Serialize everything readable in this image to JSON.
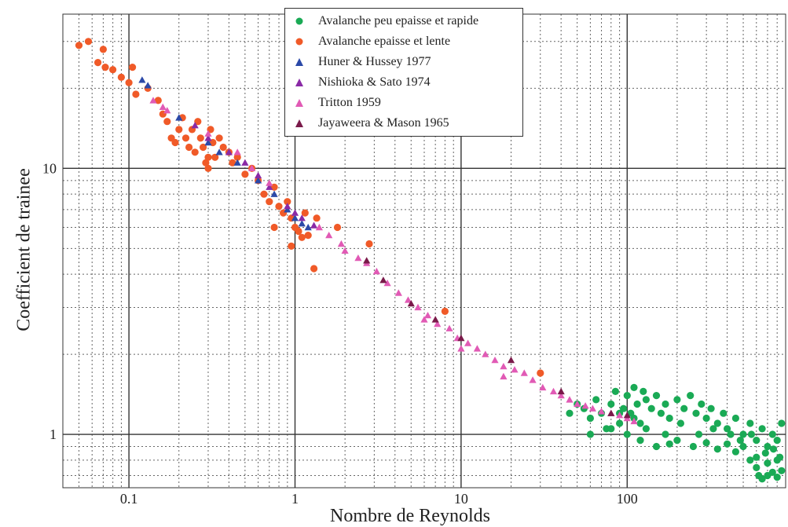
{
  "chart_data": {
    "type": "scatter",
    "xlabel": "Nombre de Reynolds",
    "ylabel": "Coefficient de trainee",
    "xscale": "log",
    "yscale": "log",
    "xlim": [
      0.04,
      900
    ],
    "ylim": [
      0.63,
      38
    ],
    "x_ticks": [
      0.1,
      1,
      10,
      100
    ],
    "x_tick_labels": [
      "0.1",
      "1",
      "10",
      "100"
    ],
    "y_ticks": [
      1,
      10
    ],
    "y_tick_labels": [
      "1",
      "10"
    ],
    "grid": true,
    "legend_position": "top-center",
    "series": [
      {
        "name": "Avalanche peu epaisse et rapide",
        "marker": "circle",
        "color": "#1aaa55",
        "points": [
          [
            45,
            1.2
          ],
          [
            50,
            1.3
          ],
          [
            55,
            1.25
          ],
          [
            60,
            1.15
          ],
          [
            65,
            1.35
          ],
          [
            70,
            1.2
          ],
          [
            75,
            1.05
          ],
          [
            80,
            1.3
          ],
          [
            85,
            1.45
          ],
          [
            90,
            1.1
          ],
          [
            95,
            1.25
          ],
          [
            100,
            1.4
          ],
          [
            105,
            1.2
          ],
          [
            110,
            1.5
          ],
          [
            115,
            1.3
          ],
          [
            120,
            1.1
          ],
          [
            125,
            1.45
          ],
          [
            130,
            1.35
          ],
          [
            140,
            1.25
          ],
          [
            150,
            1.4
          ],
          [
            160,
            1.2
          ],
          [
            170,
            1.3
          ],
          [
            180,
            1.15
          ],
          [
            200,
            1.35
          ],
          [
            220,
            1.25
          ],
          [
            240,
            1.4
          ],
          [
            260,
            1.2
          ],
          [
            280,
            1.3
          ],
          [
            300,
            1.15
          ],
          [
            320,
            1.25
          ],
          [
            350,
            1.1
          ],
          [
            380,
            1.2
          ],
          [
            400,
            1.05
          ],
          [
            450,
            1.15
          ],
          [
            500,
            1.0
          ],
          [
            550,
            1.1
          ],
          [
            600,
            0.95
          ],
          [
            650,
            1.05
          ],
          [
            700,
            0.9
          ],
          [
            750,
            1.0
          ],
          [
            800,
            0.95
          ],
          [
            850,
            1.1
          ],
          [
            60,
            1.0
          ],
          [
            80,
            1.05
          ],
          [
            100,
            1.0
          ],
          [
            120,
            0.95
          ],
          [
            150,
            0.9
          ],
          [
            180,
            0.92
          ],
          [
            200,
            0.95
          ],
          [
            250,
            0.9
          ],
          [
            300,
            0.93
          ],
          [
            350,
            0.88
          ],
          [
            400,
            0.92
          ],
          [
            450,
            0.86
          ],
          [
            500,
            0.9
          ],
          [
            550,
            0.8
          ],
          [
            600,
            0.75
          ],
          [
            620,
            0.7
          ],
          [
            650,
            0.68
          ],
          [
            700,
            0.7
          ],
          [
            750,
            0.72
          ],
          [
            800,
            0.69
          ],
          [
            850,
            0.73
          ],
          [
            600,
            0.82
          ],
          [
            700,
            0.78
          ],
          [
            800,
            0.8
          ],
          [
            90,
            1.2
          ],
          [
            110,
            1.15
          ],
          [
            130,
            1.05
          ],
          [
            170,
            1.0
          ],
          [
            210,
            1.1
          ],
          [
            270,
            1.0
          ],
          [
            330,
            1.05
          ],
          [
            420,
            1.0
          ],
          [
            480,
            0.95
          ],
          [
            560,
            1.0
          ],
          [
            680,
            0.85
          ],
          [
            760,
            0.88
          ],
          [
            830,
            0.82
          ]
        ]
      },
      {
        "name": "Avalanche epaisse et lente",
        "marker": "circle",
        "color": "#f05a28",
        "points": [
          [
            0.05,
            29
          ],
          [
            0.057,
            30
          ],
          [
            0.065,
            25
          ],
          [
            0.07,
            28
          ],
          [
            0.072,
            24
          ],
          [
            0.08,
            23.5
          ],
          [
            0.09,
            22
          ],
          [
            0.1,
            21
          ],
          [
            0.105,
            24
          ],
          [
            0.11,
            19
          ],
          [
            0.13,
            20
          ],
          [
            0.15,
            18
          ],
          [
            0.17,
            15
          ],
          [
            0.18,
            13
          ],
          [
            0.2,
            14
          ],
          [
            0.21,
            15.5
          ],
          [
            0.22,
            13
          ],
          [
            0.23,
            12
          ],
          [
            0.24,
            14
          ],
          [
            0.25,
            11.5
          ],
          [
            0.26,
            15
          ],
          [
            0.27,
            13
          ],
          [
            0.28,
            12
          ],
          [
            0.29,
            10.5
          ],
          [
            0.3,
            11
          ],
          [
            0.31,
            14
          ],
          [
            0.32,
            12.5
          ],
          [
            0.33,
            11
          ],
          [
            0.35,
            13
          ],
          [
            0.37,
            12
          ],
          [
            0.4,
            11.5
          ],
          [
            0.42,
            10.5
          ],
          [
            0.45,
            11
          ],
          [
            0.5,
            9.5
          ],
          [
            0.55,
            10
          ],
          [
            0.6,
            9
          ],
          [
            0.65,
            8
          ],
          [
            0.7,
            7.5
          ],
          [
            0.75,
            8.5
          ],
          [
            0.8,
            7.2
          ],
          [
            0.85,
            6.8
          ],
          [
            0.9,
            7.5
          ],
          [
            0.95,
            6.5
          ],
          [
            1.0,
            6.0
          ],
          [
            1.05,
            5.8
          ],
          [
            1.1,
            5.5
          ],
          [
            1.15,
            6.8
          ],
          [
            1.2,
            5.6
          ],
          [
            1.3,
            4.2
          ],
          [
            1.35,
            6.5
          ],
          [
            1.8,
            6.0
          ],
          [
            2.8,
            5.2
          ],
          [
            0.75,
            6.0
          ],
          [
            0.95,
            5.1
          ],
          [
            0.3,
            10
          ],
          [
            0.19,
            12.5
          ],
          [
            0.16,
            16
          ],
          [
            8,
            2.9
          ],
          [
            30,
            1.7
          ]
        ]
      },
      {
        "name": "Huner & Hussey 1977",
        "marker": "triangle",
        "color": "#2b49a8",
        "points": [
          [
            0.12,
            21.5
          ],
          [
            0.13,
            20.5
          ],
          [
            0.2,
            15.5
          ],
          [
            0.3,
            12.5
          ],
          [
            0.35,
            11.5
          ],
          [
            0.45,
            10.5
          ],
          [
            0.6,
            9.0
          ],
          [
            0.75,
            8.0
          ],
          [
            0.9,
            7.0
          ],
          [
            1.0,
            6.5
          ],
          [
            1.1,
            6.2
          ],
          [
            1.2,
            6.0
          ]
        ]
      },
      {
        "name": "Nishioka & Sato 1974",
        "marker": "triangle",
        "color": "#8a2aa6",
        "points": [
          [
            0.25,
            14.5
          ],
          [
            0.3,
            13
          ],
          [
            0.4,
            11.5
          ],
          [
            0.5,
            10.5
          ],
          [
            0.6,
            9.4
          ],
          [
            0.7,
            8.5
          ],
          [
            0.9,
            7.2
          ],
          [
            1.0,
            6.8
          ],
          [
            1.1,
            6.5
          ],
          [
            1.3,
            6.1
          ]
        ]
      },
      {
        "name": "Tritton 1959",
        "marker": "triangle",
        "color": "#e15ab5",
        "points": [
          [
            0.14,
            18
          ],
          [
            0.16,
            17
          ],
          [
            0.17,
            16.5
          ],
          [
            0.3,
            13.5
          ],
          [
            0.45,
            11.5
          ],
          [
            0.55,
            10
          ],
          [
            0.7,
            8.8
          ],
          [
            1.4,
            6.0
          ],
          [
            1.6,
            5.6
          ],
          [
            1.9,
            5.2
          ],
          [
            2.0,
            4.9
          ],
          [
            2.4,
            4.6
          ],
          [
            2.7,
            4.4
          ],
          [
            3.1,
            4.1
          ],
          [
            3.6,
            3.7
          ],
          [
            4.2,
            3.4
          ],
          [
            4.8,
            3.2
          ],
          [
            5.5,
            3.0
          ],
          [
            6.3,
            2.8
          ],
          [
            7.2,
            2.6
          ],
          [
            8.5,
            2.5
          ],
          [
            9.5,
            2.3
          ],
          [
            11,
            2.2
          ],
          [
            12.5,
            2.1
          ],
          [
            14,
            2.0
          ],
          [
            16,
            1.9
          ],
          [
            18,
            1.8
          ],
          [
            21,
            1.75
          ],
          [
            24,
            1.7
          ],
          [
            27,
            1.6
          ],
          [
            31,
            1.5
          ],
          [
            36,
            1.45
          ],
          [
            40,
            1.4
          ],
          [
            45,
            1.35
          ],
          [
            50,
            1.3
          ],
          [
            56,
            1.28
          ],
          [
            62,
            1.25
          ],
          [
            70,
            1.22
          ],
          [
            80,
            1.2
          ],
          [
            90,
            1.18
          ],
          [
            100,
            1.15
          ],
          [
            110,
            1.12
          ],
          [
            18,
            1.65
          ],
          [
            10,
            2.1
          ],
          [
            6,
            2.7
          ]
        ]
      },
      {
        "name": "Jayaweera & Mason 1965",
        "marker": "triangle",
        "color": "#7a1a4a",
        "points": [
          [
            2.7,
            4.5
          ],
          [
            3.4,
            3.8
          ],
          [
            5,
            3.1
          ],
          [
            7,
            2.7
          ],
          [
            10,
            2.3
          ],
          [
            20,
            1.9
          ],
          [
            40,
            1.45
          ],
          [
            80,
            1.2
          ],
          [
            100,
            1.18
          ]
        ]
      }
    ]
  }
}
